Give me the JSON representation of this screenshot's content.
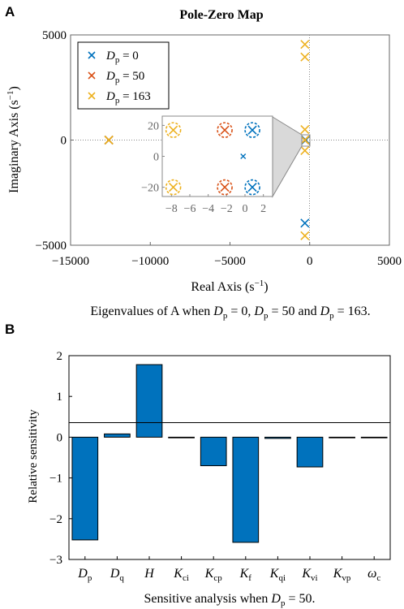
{
  "panelA": {
    "letter": "A",
    "title": "Pole-Zero Map",
    "xlabel": "Real Axis (s",
    "xlabel_sup": "−1",
    "xlabel_end": ")",
    "ylabel": "Imaginary Axis (s",
    "ylabel_sup": "−1",
    "ylabel_end": ")",
    "caption_pre": "Eigenvalues of A when ",
    "caption_post": " = 0, ",
    "caption_mid": " = 50 and ",
    "caption_end": " = 163.",
    "legend": [
      {
        "sym": "D",
        "sub": "p",
        "rest": " = 0",
        "color": "#0072BD"
      },
      {
        "sym": "D",
        "sub": "p",
        "rest": " = 50",
        "color": "#D95319"
      },
      {
        "sym": "D",
        "sub": "p",
        "rest": " = 163",
        "color": "#EDB120"
      }
    ],
    "xticks": [
      "−15000",
      "−10000",
      "−5000",
      "0",
      "5000"
    ],
    "yticks": [
      "5000",
      "0",
      "−5000"
    ],
    "inset_xticks": [
      "−8",
      "−6",
      "−4",
      "−2",
      "0",
      "2"
    ],
    "inset_yticks": [
      "20",
      "0",
      "−20"
    ]
  },
  "panelB": {
    "letter": "B",
    "ylabel": "Relative sensitivity",
    "caption_pre": "Sensitive analysis when ",
    "caption_post": " = 50.",
    "yticks": [
      "2",
      "1",
      "0",
      "−1",
      "−2",
      "−3"
    ],
    "xticks": [
      {
        "sym": "D",
        "sub": "p"
      },
      {
        "sym": "D",
        "sub": "q"
      },
      {
        "sym": "H",
        "sub": ""
      },
      {
        "sym": "K",
        "sub": "ci"
      },
      {
        "sym": "K",
        "sub": "cp"
      },
      {
        "sym": "K",
        "sub": "f"
      },
      {
        "sym": "K",
        "sub": "qi"
      },
      {
        "sym": "K",
        "sub": "vi"
      },
      {
        "sym": "K",
        "sub": "vp"
      },
      {
        "sym": "ω",
        "sub": "c"
      }
    ],
    "bar_color": "#0072BD"
  },
  "chart_data": [
    {
      "type": "scatter",
      "title": "Pole-Zero Map",
      "xlabel": "Real Axis (s−1)",
      "ylabel": "Imaginary Axis (s−1)",
      "xlim": [
        -15000,
        5000
      ],
      "ylim": [
        -5000,
        5000
      ],
      "grid": false,
      "legend_position": "top-left",
      "series": [
        {
          "name": "Dp = 0",
          "color": "#0072BD",
          "points": [
            [
              -12600,
              0
            ],
            [
              -300,
              0
            ],
            [
              -300,
              -3950
            ],
            [
              -250,
              0
            ]
          ]
        },
        {
          "name": "Dp = 50",
          "color": "#D95319",
          "points": [
            [
              -12600,
              0
            ],
            [
              -300,
              0
            ]
          ]
        },
        {
          "name": "Dp = 163",
          "color": "#EDB120",
          "points": [
            [
              -12600,
              0
            ],
            [
              -300,
              4550
            ],
            [
              -300,
              3950
            ],
            [
              -300,
              0
            ],
            [
              -300,
              -4550
            ],
            [
              -300,
              500
            ],
            [
              -300,
              -500
            ]
          ]
        }
      ],
      "inset": {
        "xlim": [
          -9,
          3
        ],
        "ylim": [
          -26,
          26
        ],
        "series": [
          {
            "name": "Dp = 0",
            "color": "#0072BD",
            "points": [
              [
                0.8,
                17
              ],
              [
                0.8,
                -20
              ],
              [
                -0.2,
                0
              ]
            ]
          },
          {
            "name": "Dp = 50",
            "color": "#D95319",
            "points": [
              [
                -2.2,
                17
              ],
              [
                -2.2,
                -20
              ]
            ]
          },
          {
            "name": "Dp = 163",
            "color": "#EDB120",
            "points": [
              [
                -7.8,
                17
              ],
              [
                -7.8,
                -20
              ]
            ]
          }
        ]
      }
    },
    {
      "type": "bar",
      "xlabel": "Sensitive analysis when Dp = 50.",
      "ylabel": "Relative sensitivity",
      "ylim": [
        -3,
        2
      ],
      "categories": [
        "Dp",
        "Dq",
        "H",
        "Kci",
        "Kcp",
        "Kf",
        "Kqi",
        "Kvi",
        "Kvp",
        "ωc"
      ],
      "values": [
        -2.52,
        0.08,
        1.78,
        0.0,
        -0.7,
        -2.58,
        -0.03,
        -0.73,
        -0.01,
        0.0
      ]
    }
  ]
}
